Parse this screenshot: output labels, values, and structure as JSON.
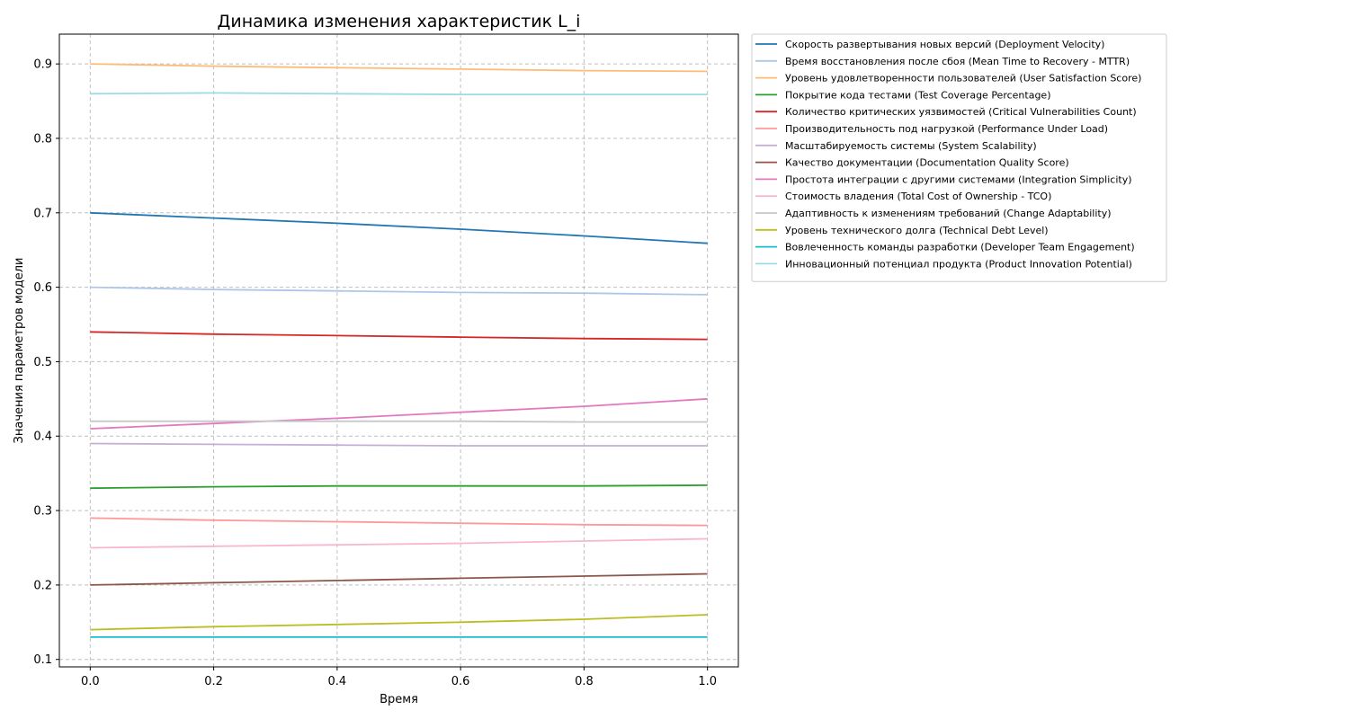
{
  "chart_data": {
    "type": "line",
    "title": "Динамика изменения характеристик L_i",
    "xlabel": "Время",
    "ylabel": "Значения параметров модели",
    "xlim": [
      -0.05,
      1.05
    ],
    "ylim": [
      0.09,
      0.94
    ],
    "x_ticks": [
      0.0,
      0.2,
      0.4,
      0.6,
      0.8,
      1.0
    ],
    "x_tick_labels": [
      "0.0",
      "0.2",
      "0.4",
      "0.6",
      "0.8",
      "1.0"
    ],
    "y_ticks": [
      0.1,
      0.2,
      0.3,
      0.4,
      0.5,
      0.6,
      0.7,
      0.8,
      0.9
    ],
    "y_tick_labels": [
      "0.1",
      "0.2",
      "0.3",
      "0.4",
      "0.5",
      "0.6",
      "0.7",
      "0.8",
      "0.9"
    ],
    "grid": true,
    "legend_position": "outside-right-top",
    "x": [
      0.0,
      0.2,
      0.4,
      0.6,
      0.8,
      1.0
    ],
    "series": [
      {
        "name": "Скорость развертывания новых версий (Deployment Velocity)",
        "color": "#1f77b4",
        "values": [
          0.7,
          0.693,
          0.686,
          0.678,
          0.669,
          0.659
        ]
      },
      {
        "name": "Время восстановления после сбоя (Mean Time to Recovery - MTTR)",
        "color": "#aec7e8",
        "values": [
          0.6,
          0.597,
          0.595,
          0.593,
          0.592,
          0.59
        ]
      },
      {
        "name": "Уровень удовлетворенности пользователей (User Satisfaction Score)",
        "color": "#ffbb78",
        "values": [
          0.9,
          0.897,
          0.895,
          0.893,
          0.891,
          0.89
        ]
      },
      {
        "name": "Покрытие кода тестами (Test Coverage Percentage)",
        "color": "#2ca02c",
        "values": [
          0.33,
          0.332,
          0.333,
          0.333,
          0.333,
          0.334
        ]
      },
      {
        "name": "Количество критических уязвимостей (Critical Vulnerabilities Count)",
        "color": "#d62728",
        "values": [
          0.54,
          0.537,
          0.535,
          0.533,
          0.531,
          0.53
        ]
      },
      {
        "name": "Производительность под нагрузкой (Performance Under Load)",
        "color": "#ff9896",
        "values": [
          0.29,
          0.287,
          0.285,
          0.283,
          0.281,
          0.28
        ]
      },
      {
        "name": "Масштабируемость системы (System Scalability)",
        "color": "#c5b0d5",
        "values": [
          0.39,
          0.389,
          0.388,
          0.387,
          0.387,
          0.387
        ]
      },
      {
        "name": "Качество документации (Documentation Quality Score)",
        "color": "#8c564b",
        "values": [
          0.2,
          0.203,
          0.206,
          0.209,
          0.212,
          0.215
        ]
      },
      {
        "name": "Простота интеграции с другими системами (Integration Simplicity)",
        "color": "#e377c2",
        "values": [
          0.41,
          0.417,
          0.424,
          0.432,
          0.44,
          0.45
        ]
      },
      {
        "name": "Стоимость владения (Total Cost of Ownership - TCO)",
        "color": "#f7b6d2",
        "values": [
          0.25,
          0.252,
          0.254,
          0.256,
          0.259,
          0.262
        ]
      },
      {
        "name": "Адаптивность к изменениям требований (Change Adaptability)",
        "color": "#c7c7c7",
        "values": [
          0.42,
          0.42,
          0.42,
          0.42,
          0.419,
          0.419
        ]
      },
      {
        "name": "Уровень технического долга (Technical Debt Level)",
        "color": "#bcbd22",
        "values": [
          0.14,
          0.144,
          0.147,
          0.15,
          0.154,
          0.16
        ]
      },
      {
        "name": "Вовлеченность команды разработки (Developer Team Engagement)",
        "color": "#17becf",
        "values": [
          0.13,
          0.13,
          0.13,
          0.13,
          0.13,
          0.13
        ]
      },
      {
        "name": "Инновационный потенциал продукта (Product Innovation Potential)",
        "color": "#9edae5",
        "values": [
          0.86,
          0.861,
          0.86,
          0.859,
          0.859,
          0.859
        ]
      }
    ]
  }
}
